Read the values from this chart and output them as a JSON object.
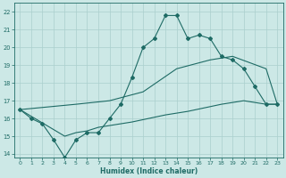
{
  "title": "",
  "xlabel": "Humidex (Indice chaleur)",
  "ylabel": "",
  "bg_color": "#cce8e6",
  "grid_color": "#aacfcd",
  "line_color": "#1e6b65",
  "xlim": [
    -0.5,
    23.5
  ],
  "ylim": [
    13.8,
    22.5
  ],
  "yticks": [
    14,
    15,
    16,
    17,
    18,
    19,
    20,
    21,
    22
  ],
  "xticks": [
    0,
    1,
    2,
    3,
    4,
    5,
    6,
    7,
    8,
    9,
    10,
    11,
    12,
    13,
    14,
    15,
    16,
    17,
    18,
    19,
    20,
    21,
    22,
    23
  ],
  "line1_x": [
    0,
    1,
    2,
    3,
    4,
    5,
    6,
    7,
    8,
    9,
    10,
    11,
    12,
    13,
    14,
    15,
    16,
    17,
    18,
    19,
    20,
    21,
    22,
    23
  ],
  "line1_y": [
    16.5,
    16.0,
    15.7,
    14.8,
    13.8,
    14.8,
    15.2,
    15.2,
    16.0,
    16.8,
    18.3,
    20.0,
    20.5,
    21.8,
    21.8,
    20.5,
    20.7,
    20.5,
    19.5,
    19.3,
    18.8,
    17.8,
    16.8,
    16.8
  ],
  "line2_x": [
    0,
    5,
    8,
    11,
    14,
    17,
    19,
    22,
    23
  ],
  "line2_y": [
    16.5,
    16.8,
    17.0,
    17.5,
    18.8,
    19.3,
    19.5,
    18.8,
    16.8
  ],
  "line3_x": [
    0,
    4,
    5,
    6,
    7,
    8,
    10,
    13,
    15,
    18,
    20,
    22,
    23
  ],
  "line3_y": [
    16.5,
    15.0,
    15.2,
    15.3,
    15.5,
    15.6,
    15.8,
    16.2,
    16.4,
    16.8,
    17.0,
    16.8,
    16.8
  ]
}
